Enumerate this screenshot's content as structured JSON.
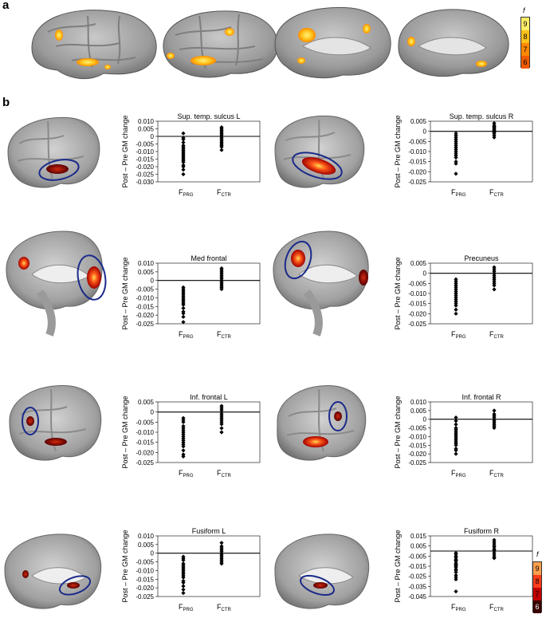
{
  "panel_a": {
    "label": "a",
    "colorbar": {
      "symbol": "f",
      "ticks": [
        "9",
        "8",
        "7",
        "6"
      ],
      "colors": [
        "#ffee66",
        "#ffc21a",
        "#ff8800",
        "#f05a00"
      ]
    }
  },
  "panel_b": {
    "label": "b",
    "colorbar": {
      "symbol": "f",
      "ticks": [
        "9",
        "8",
        "7",
        "6"
      ],
      "colors": [
        "#ff9f4d",
        "#ff3b1a",
        "#c00000",
        "#3a0000"
      ]
    }
  },
  "common": {
    "ylabel": "Post – Pre GM change",
    "group_main": "F",
    "group_subs": [
      "PRG",
      "CTR"
    ]
  },
  "chart_data": [
    {
      "type": "scatter",
      "title": "Sup. temp. sulcus L",
      "yticks": [
        "0.010",
        "0.005",
        "0",
        "-0.005",
        "-0.010",
        "-0.015",
        "-0.020",
        "-0.025",
        "-0.030"
      ],
      "ylim": [
        -0.03,
        0.01
      ],
      "groups": [
        {
          "name": "FPRG",
          "values": [
            0.002,
            -0.001,
            -0.002,
            -0.004,
            -0.006,
            -0.007,
            -0.008,
            -0.009,
            -0.01,
            -0.011,
            -0.012,
            -0.013,
            -0.014,
            -0.015,
            -0.016,
            -0.017,
            -0.019,
            -0.02,
            -0.022,
            -0.025
          ]
        },
        {
          "name": "FCTR",
          "values": [
            0.006,
            0.005,
            0.004,
            0.003,
            0.002,
            0.001,
            0.0,
            -0.001,
            -0.002,
            -0.003,
            -0.004,
            -0.005,
            -0.006,
            -0.007,
            -0.009
          ]
        }
      ]
    },
    {
      "type": "scatter",
      "title": "Sup. temp. sulcus R",
      "yticks": [
        "0.005",
        "0",
        "-0.005",
        "-0.010",
        "-0.015",
        "-0.020",
        "-0.025"
      ],
      "ylim": [
        -0.025,
        0.005
      ],
      "groups": [
        {
          "name": "FPRG",
          "values": [
            -0.001,
            -0.002,
            -0.003,
            -0.004,
            -0.005,
            -0.006,
            -0.007,
            -0.008,
            -0.009,
            -0.01,
            -0.011,
            -0.012,
            -0.013,
            -0.015,
            -0.016,
            -0.021
          ]
        },
        {
          "name": "FCTR",
          "values": [
            0.004,
            0.003,
            0.0025,
            0.002,
            0.0015,
            0.001,
            0.0005,
            0.0,
            -0.0005,
            -0.001,
            -0.002,
            -0.003
          ]
        }
      ]
    },
    {
      "type": "scatter",
      "title": "Med frontal",
      "yticks": [
        "0.010",
        "0.005",
        "0",
        "-0.005",
        "-0.010",
        "-0.015",
        "-0.020",
        "-0.025"
      ],
      "ylim": [
        -0.025,
        0.01
      ],
      "groups": [
        {
          "name": "FPRG",
          "values": [
            -0.004,
            -0.005,
            -0.006,
            -0.007,
            -0.008,
            -0.009,
            -0.01,
            -0.011,
            -0.012,
            -0.013,
            -0.014,
            -0.016,
            -0.018,
            -0.019,
            -0.021,
            -0.024
          ]
        },
        {
          "name": "FCTR",
          "values": [
            0.007,
            0.006,
            0.005,
            0.004,
            0.003,
            0.002,
            0.001,
            0.0,
            -0.001,
            -0.002,
            -0.003,
            -0.004,
            -0.005
          ]
        }
      ]
    },
    {
      "type": "scatter",
      "title": "Precuneus",
      "yticks": [
        "0.005",
        "0",
        "-0.005",
        "-0.010",
        "-0.015",
        "-0.020",
        "-0.025"
      ],
      "ylim": [
        -0.025,
        0.005
      ],
      "groups": [
        {
          "name": "FPRG",
          "values": [
            -0.003,
            -0.004,
            -0.005,
            -0.006,
            -0.007,
            -0.008,
            -0.009,
            -0.01,
            -0.011,
            -0.012,
            -0.013,
            -0.014,
            -0.015,
            -0.016,
            -0.018,
            -0.02
          ]
        },
        {
          "name": "FCTR",
          "values": [
            0.003,
            0.002,
            0.001,
            0.0,
            -0.001,
            -0.002,
            -0.003,
            -0.004,
            -0.005,
            -0.006,
            -0.008
          ]
        }
      ]
    },
    {
      "type": "scatter",
      "title": "Inf. frontal L",
      "yticks": [
        "0.005",
        "0",
        "-0.005",
        "-0.010",
        "-0.015",
        "-0.020",
        "-0.025"
      ],
      "ylim": [
        -0.025,
        0.005
      ],
      "groups": [
        {
          "name": "FPRG",
          "values": [
            -0.003,
            -0.004,
            -0.005,
            -0.007,
            -0.008,
            -0.009,
            -0.01,
            -0.011,
            -0.012,
            -0.013,
            -0.014,
            -0.015,
            -0.016,
            -0.017,
            -0.019,
            -0.021,
            -0.022
          ]
        },
        {
          "name": "FCTR",
          "values": [
            0.003,
            0.002,
            0.001,
            0.0,
            -0.001,
            -0.002,
            -0.003,
            -0.004,
            -0.005,
            -0.006,
            -0.008,
            -0.01
          ]
        }
      ]
    },
    {
      "type": "scatter",
      "title": "Inf. frontal R",
      "yticks": [
        "0.010",
        "0.005",
        "0",
        "-0.005",
        "-0.010",
        "-0.015",
        "-0.020",
        "-0.025"
      ],
      "ylim": [
        -0.025,
        0.01
      ],
      "groups": [
        {
          "name": "FPRG",
          "values": [
            0.001,
            -0.001,
            -0.003,
            -0.005,
            -0.006,
            -0.007,
            -0.008,
            -0.009,
            -0.01,
            -0.011,
            -0.012,
            -0.013,
            -0.014,
            -0.015,
            -0.017,
            -0.018,
            -0.02
          ]
        },
        {
          "name": "FCTR",
          "values": [
            0.005,
            0.003,
            0.002,
            0.001,
            0.0,
            -0.001,
            -0.002,
            -0.003,
            -0.004,
            -0.005
          ]
        }
      ]
    },
    {
      "type": "scatter",
      "title": "Fusiform L",
      "yticks": [
        "0.010",
        "0.005",
        "0",
        "-0.005",
        "-0.010",
        "-0.015",
        "-0.020",
        "-0.025"
      ],
      "ylim": [
        -0.025,
        0.01
      ],
      "groups": [
        {
          "name": "FPRG",
          "values": [
            -0.002,
            -0.003,
            -0.004,
            -0.006,
            -0.007,
            -0.008,
            -0.009,
            -0.01,
            -0.011,
            -0.012,
            -0.013,
            -0.014,
            -0.016,
            -0.017,
            -0.019,
            -0.021,
            -0.023
          ]
        },
        {
          "name": "FCTR",
          "values": [
            0.006,
            0.004,
            0.003,
            0.002,
            0.001,
            0.0,
            -0.001,
            -0.002,
            -0.003,
            -0.004,
            -0.005,
            -0.006
          ]
        }
      ]
    },
    {
      "type": "scatter",
      "title": "Fusiform R",
      "yticks": [
        "0.015",
        "0.005",
        "-0.005",
        "-0.015",
        "-0.025",
        "-0.035",
        "-0.045"
      ],
      "ylim": [
        -0.045,
        0.015
      ],
      "groups": [
        {
          "name": "FPRG",
          "values": [
            -0.002,
            -0.003,
            -0.005,
            -0.006,
            -0.008,
            -0.009,
            -0.01,
            -0.012,
            -0.013,
            -0.014,
            -0.015,
            -0.016,
            -0.018,
            -0.019,
            -0.021,
            -0.024,
            -0.026,
            -0.028,
            -0.04
          ]
        },
        {
          "name": "FCTR",
          "values": [
            0.011,
            0.009,
            0.007,
            0.005,
            0.004,
            0.002,
            0.001,
            0.0,
            -0.002,
            -0.004,
            -0.006,
            -0.007
          ]
        }
      ]
    }
  ]
}
